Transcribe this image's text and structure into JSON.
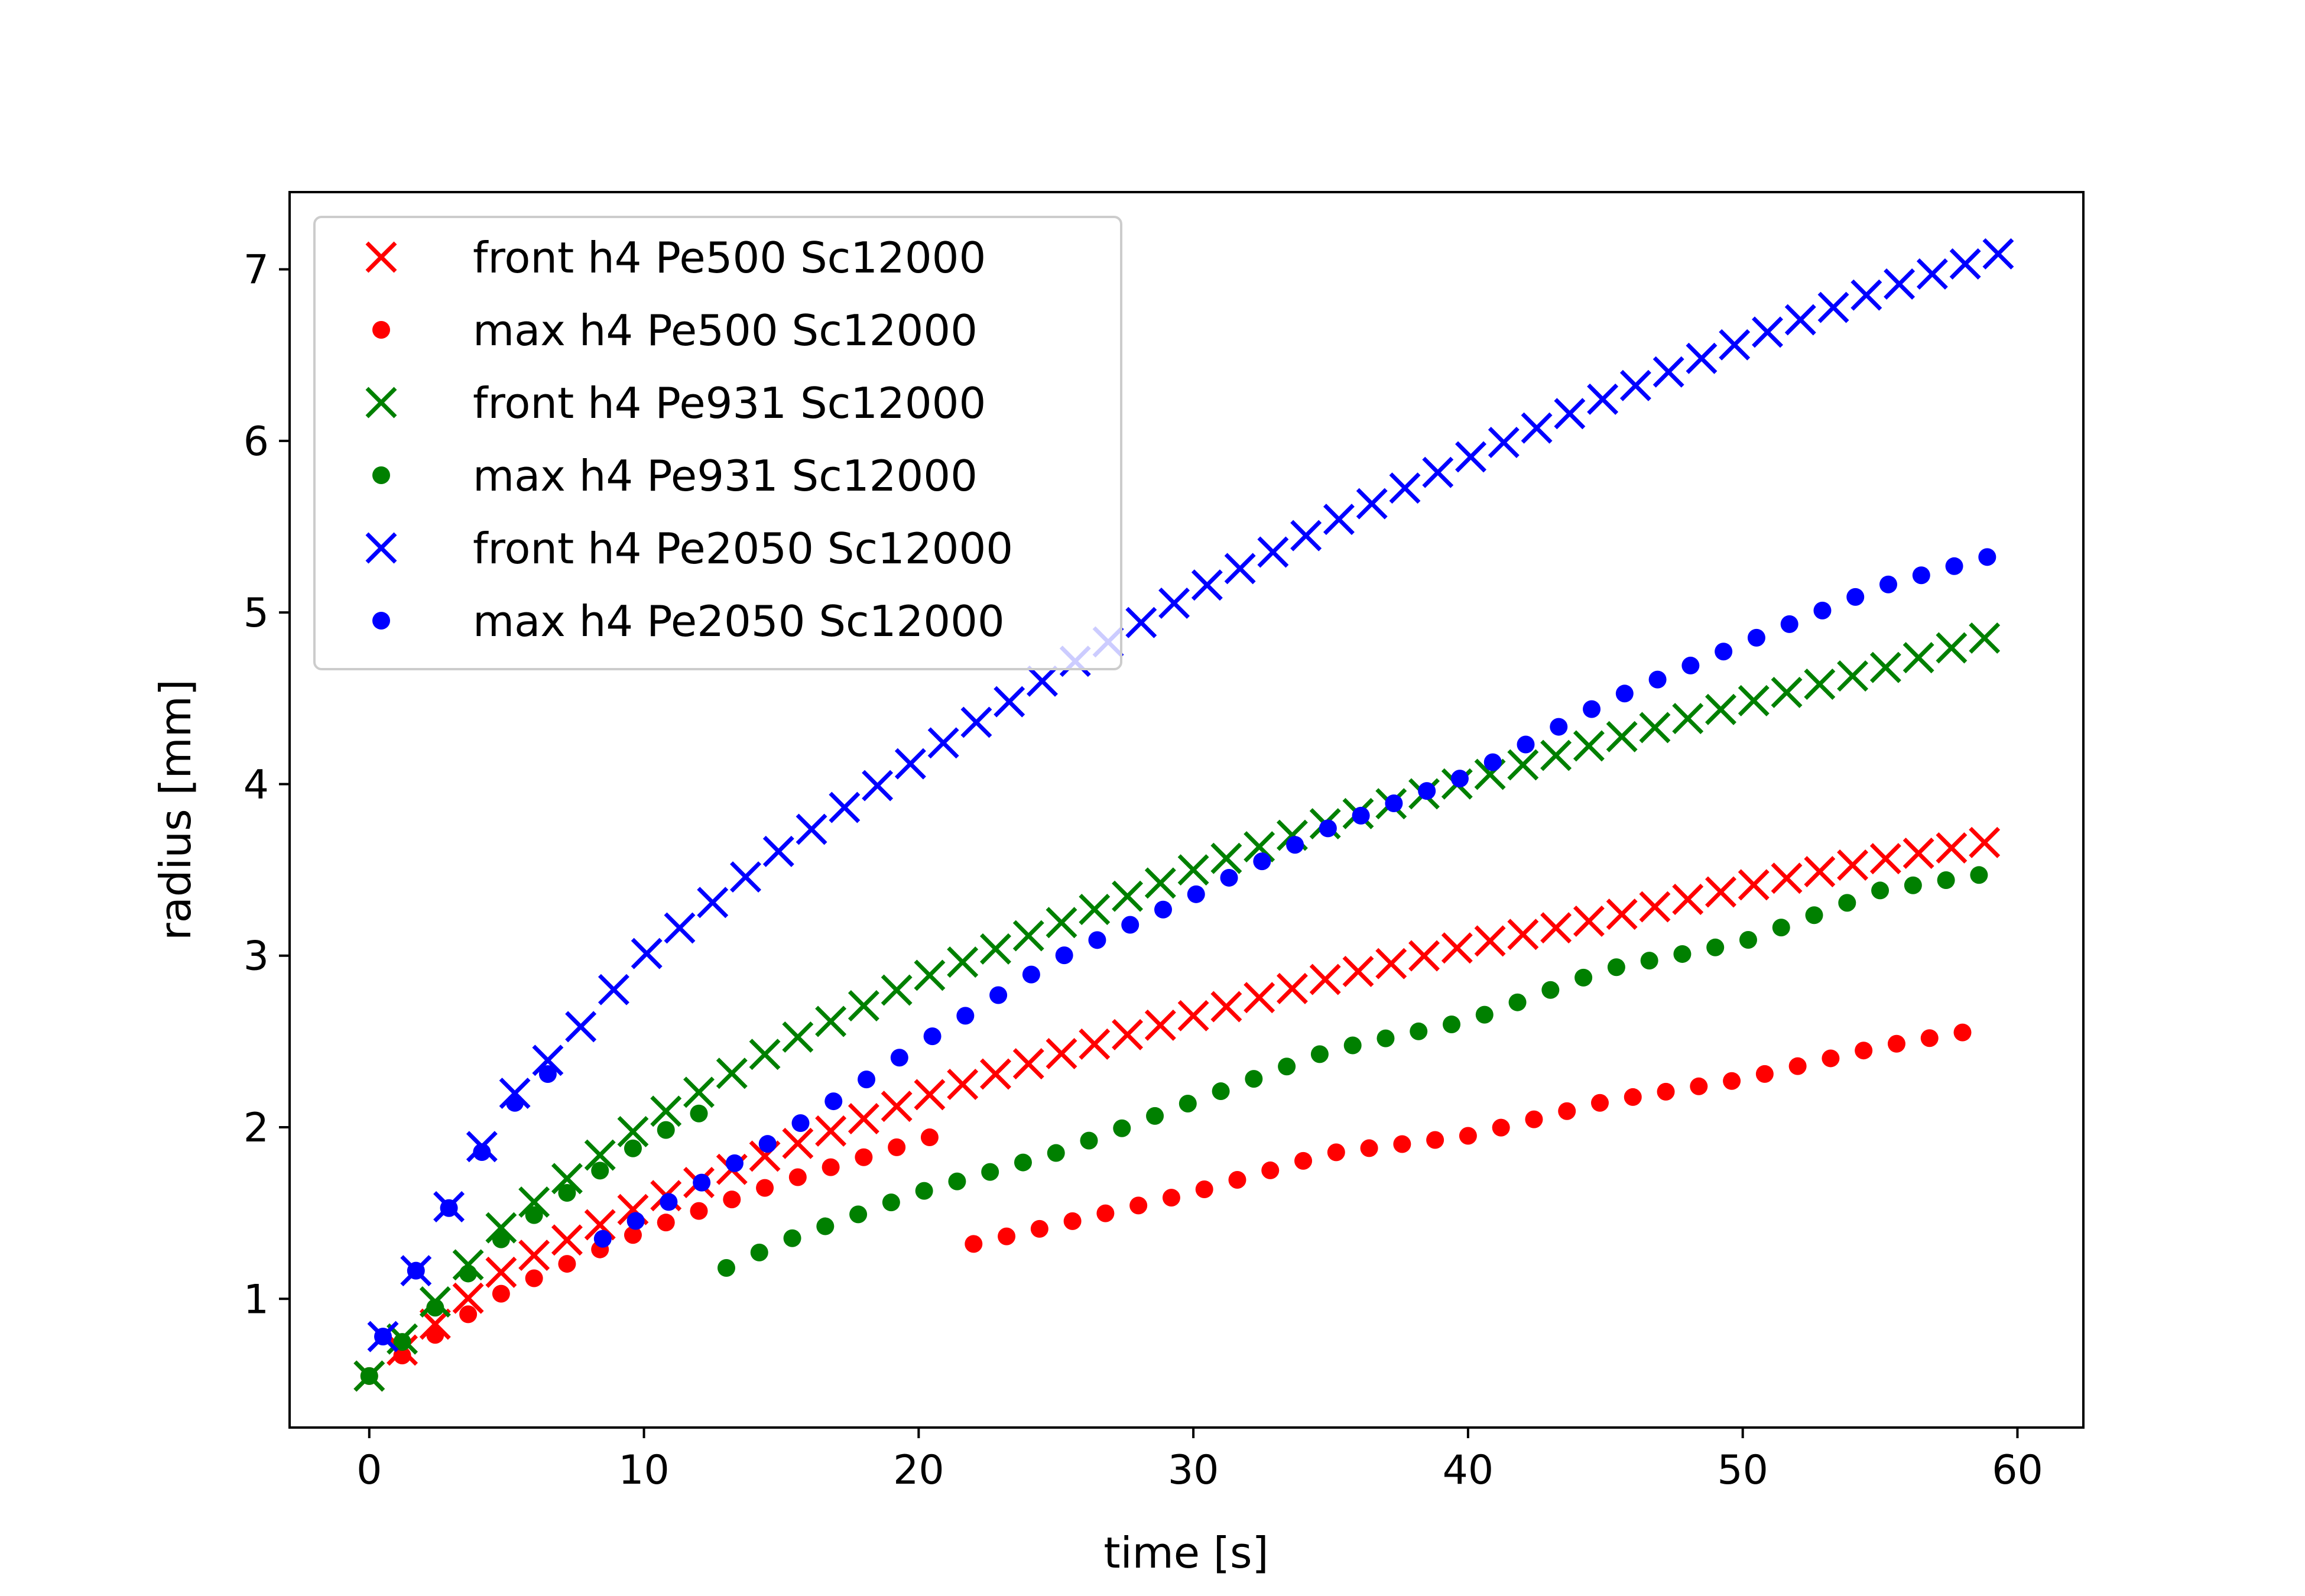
{
  "chart_data": {
    "type": "scatter",
    "title": "",
    "xlabel": "time [s]",
    "ylabel": "radius [mm]",
    "xlim": [
      -2.9,
      62.4
    ],
    "ylim": [
      0.25,
      7.45
    ],
    "xticks": [
      "0",
      "10",
      "20",
      "30",
      "40",
      "50",
      "60"
    ],
    "yticks": [
      "1",
      "2",
      "3",
      "4",
      "5",
      "6",
      "7"
    ],
    "grid": false,
    "legend_position": "top-left",
    "series": [
      {
        "name": "front h4 Pe500 Sc12000",
        "marker": "x",
        "color": "#ff0000",
        "x": [
          0,
          5,
          10,
          15,
          20,
          25,
          30,
          35,
          40,
          45,
          50,
          55,
          59.2
        ],
        "y": [
          0.55,
          1.18,
          1.55,
          1.87,
          2.17,
          2.42,
          2.65,
          2.87,
          3.06,
          3.22,
          3.4,
          3.56,
          3.67
        ]
      },
      {
        "name": "max h4 Pe500 Sc12000",
        "marker": "dot",
        "color": "#ff0000",
        "x": [
          0,
          5,
          10,
          15,
          21.2,
          22,
          25,
          30,
          35,
          40,
          45,
          50,
          55,
          59
        ],
        "y": [
          0.55,
          1.05,
          1.4,
          1.68,
          1.98,
          1.32,
          1.43,
          1.62,
          1.85,
          1.95,
          2.15,
          2.28,
          2.47,
          2.58
        ]
      },
      {
        "name": "front h4 Pe931 Sc12000",
        "marker": "x",
        "color": "#008000",
        "x": [
          0,
          5,
          10,
          15,
          20,
          25,
          30,
          35,
          40,
          45,
          50,
          55,
          59.2
        ],
        "y": [
          0.55,
          1.45,
          2.02,
          2.48,
          2.86,
          3.18,
          3.5,
          3.78,
          4.02,
          4.25,
          4.47,
          4.67,
          4.87
        ]
      },
      {
        "name": "max h4 Pe931 Sc12000",
        "marker": "dot",
        "color": "#008000",
        "x": [
          0,
          5,
          10,
          12,
          13,
          15,
          20,
          25,
          30,
          35,
          40,
          45,
          50,
          55,
          59
        ],
        "y": [
          0.55,
          1.38,
          1.92,
          2.08,
          1.18,
          1.33,
          1.62,
          1.85,
          2.15,
          2.45,
          2.62,
          2.92,
          3.08,
          3.38,
          3.48
        ]
      },
      {
        "name": "front h4 Pe2050 Sc12000",
        "marker": "x",
        "color": "#0000ff",
        "x": [
          0.5,
          2.5,
          5,
          7.5,
          10,
          15,
          20,
          25,
          30,
          35,
          40,
          45,
          50,
          55,
          59.5
        ],
        "y": [
          0.78,
          1.42,
          2.15,
          2.55,
          3.0,
          3.62,
          4.15,
          4.65,
          5.12,
          5.52,
          5.9,
          6.25,
          6.58,
          6.88,
          7.1
        ]
      },
      {
        "name": "max h4 Pe2050 Sc12000",
        "marker": "dot",
        "color": "#0000ff",
        "x": [
          0.5,
          2.5,
          5,
          7.5,
          8.5,
          10,
          15,
          20,
          25,
          30,
          35,
          40,
          45,
          50,
          55,
          59.5
        ],
        "y": [
          0.78,
          1.42,
          2.1,
          2.45,
          1.35,
          1.48,
          1.95,
          2.48,
          2.98,
          3.35,
          3.75,
          4.05,
          4.48,
          4.82,
          5.15,
          5.35
        ]
      }
    ]
  }
}
